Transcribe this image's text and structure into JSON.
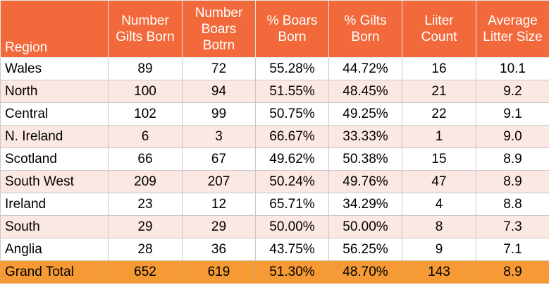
{
  "chart_data": {
    "type": "table",
    "title": "",
    "columns": [
      "Region",
      "Number Gilts Born",
      "Number Boars Botrn",
      "% Boars Born",
      "% Gilts Born",
      "Liiter Count",
      "Average Litter Size"
    ],
    "rows": [
      [
        "Wales",
        "89",
        "72",
        "55.28%",
        "44.72%",
        "16",
        "10.1"
      ],
      [
        "North",
        "100",
        "94",
        "51.55%",
        "48.45%",
        "21",
        "9.2"
      ],
      [
        "Central",
        "102",
        "99",
        "50.75%",
        "49.25%",
        "22",
        "9.1"
      ],
      [
        "N. Ireland",
        "6",
        "3",
        "66.67%",
        "33.33%",
        "1",
        "9.0"
      ],
      [
        "Scotland",
        "66",
        "67",
        "49.62%",
        "50.38%",
        "15",
        "8.9"
      ],
      [
        "South West",
        "209",
        "207",
        "50.24%",
        "49.76%",
        "47",
        "8.9"
      ],
      [
        "Ireland",
        "23",
        "12",
        "65.71%",
        "34.29%",
        "4",
        "8.8"
      ],
      [
        "South",
        "29",
        "29",
        "50.00%",
        "50.00%",
        "8",
        "7.3"
      ],
      [
        "Anglia",
        "28",
        "36",
        "43.75%",
        "56.25%",
        "9",
        "7.1"
      ]
    ],
    "total_row": [
      "Grand Total",
      "652",
      "619",
      "51.30%",
      "48.70%",
      "143",
      "8.9"
    ]
  },
  "colors": {
    "header_background": "#f26a3c",
    "header_text": "#ffffff",
    "stripe_background": "#fce8e2",
    "total_background": "#f59a35"
  }
}
